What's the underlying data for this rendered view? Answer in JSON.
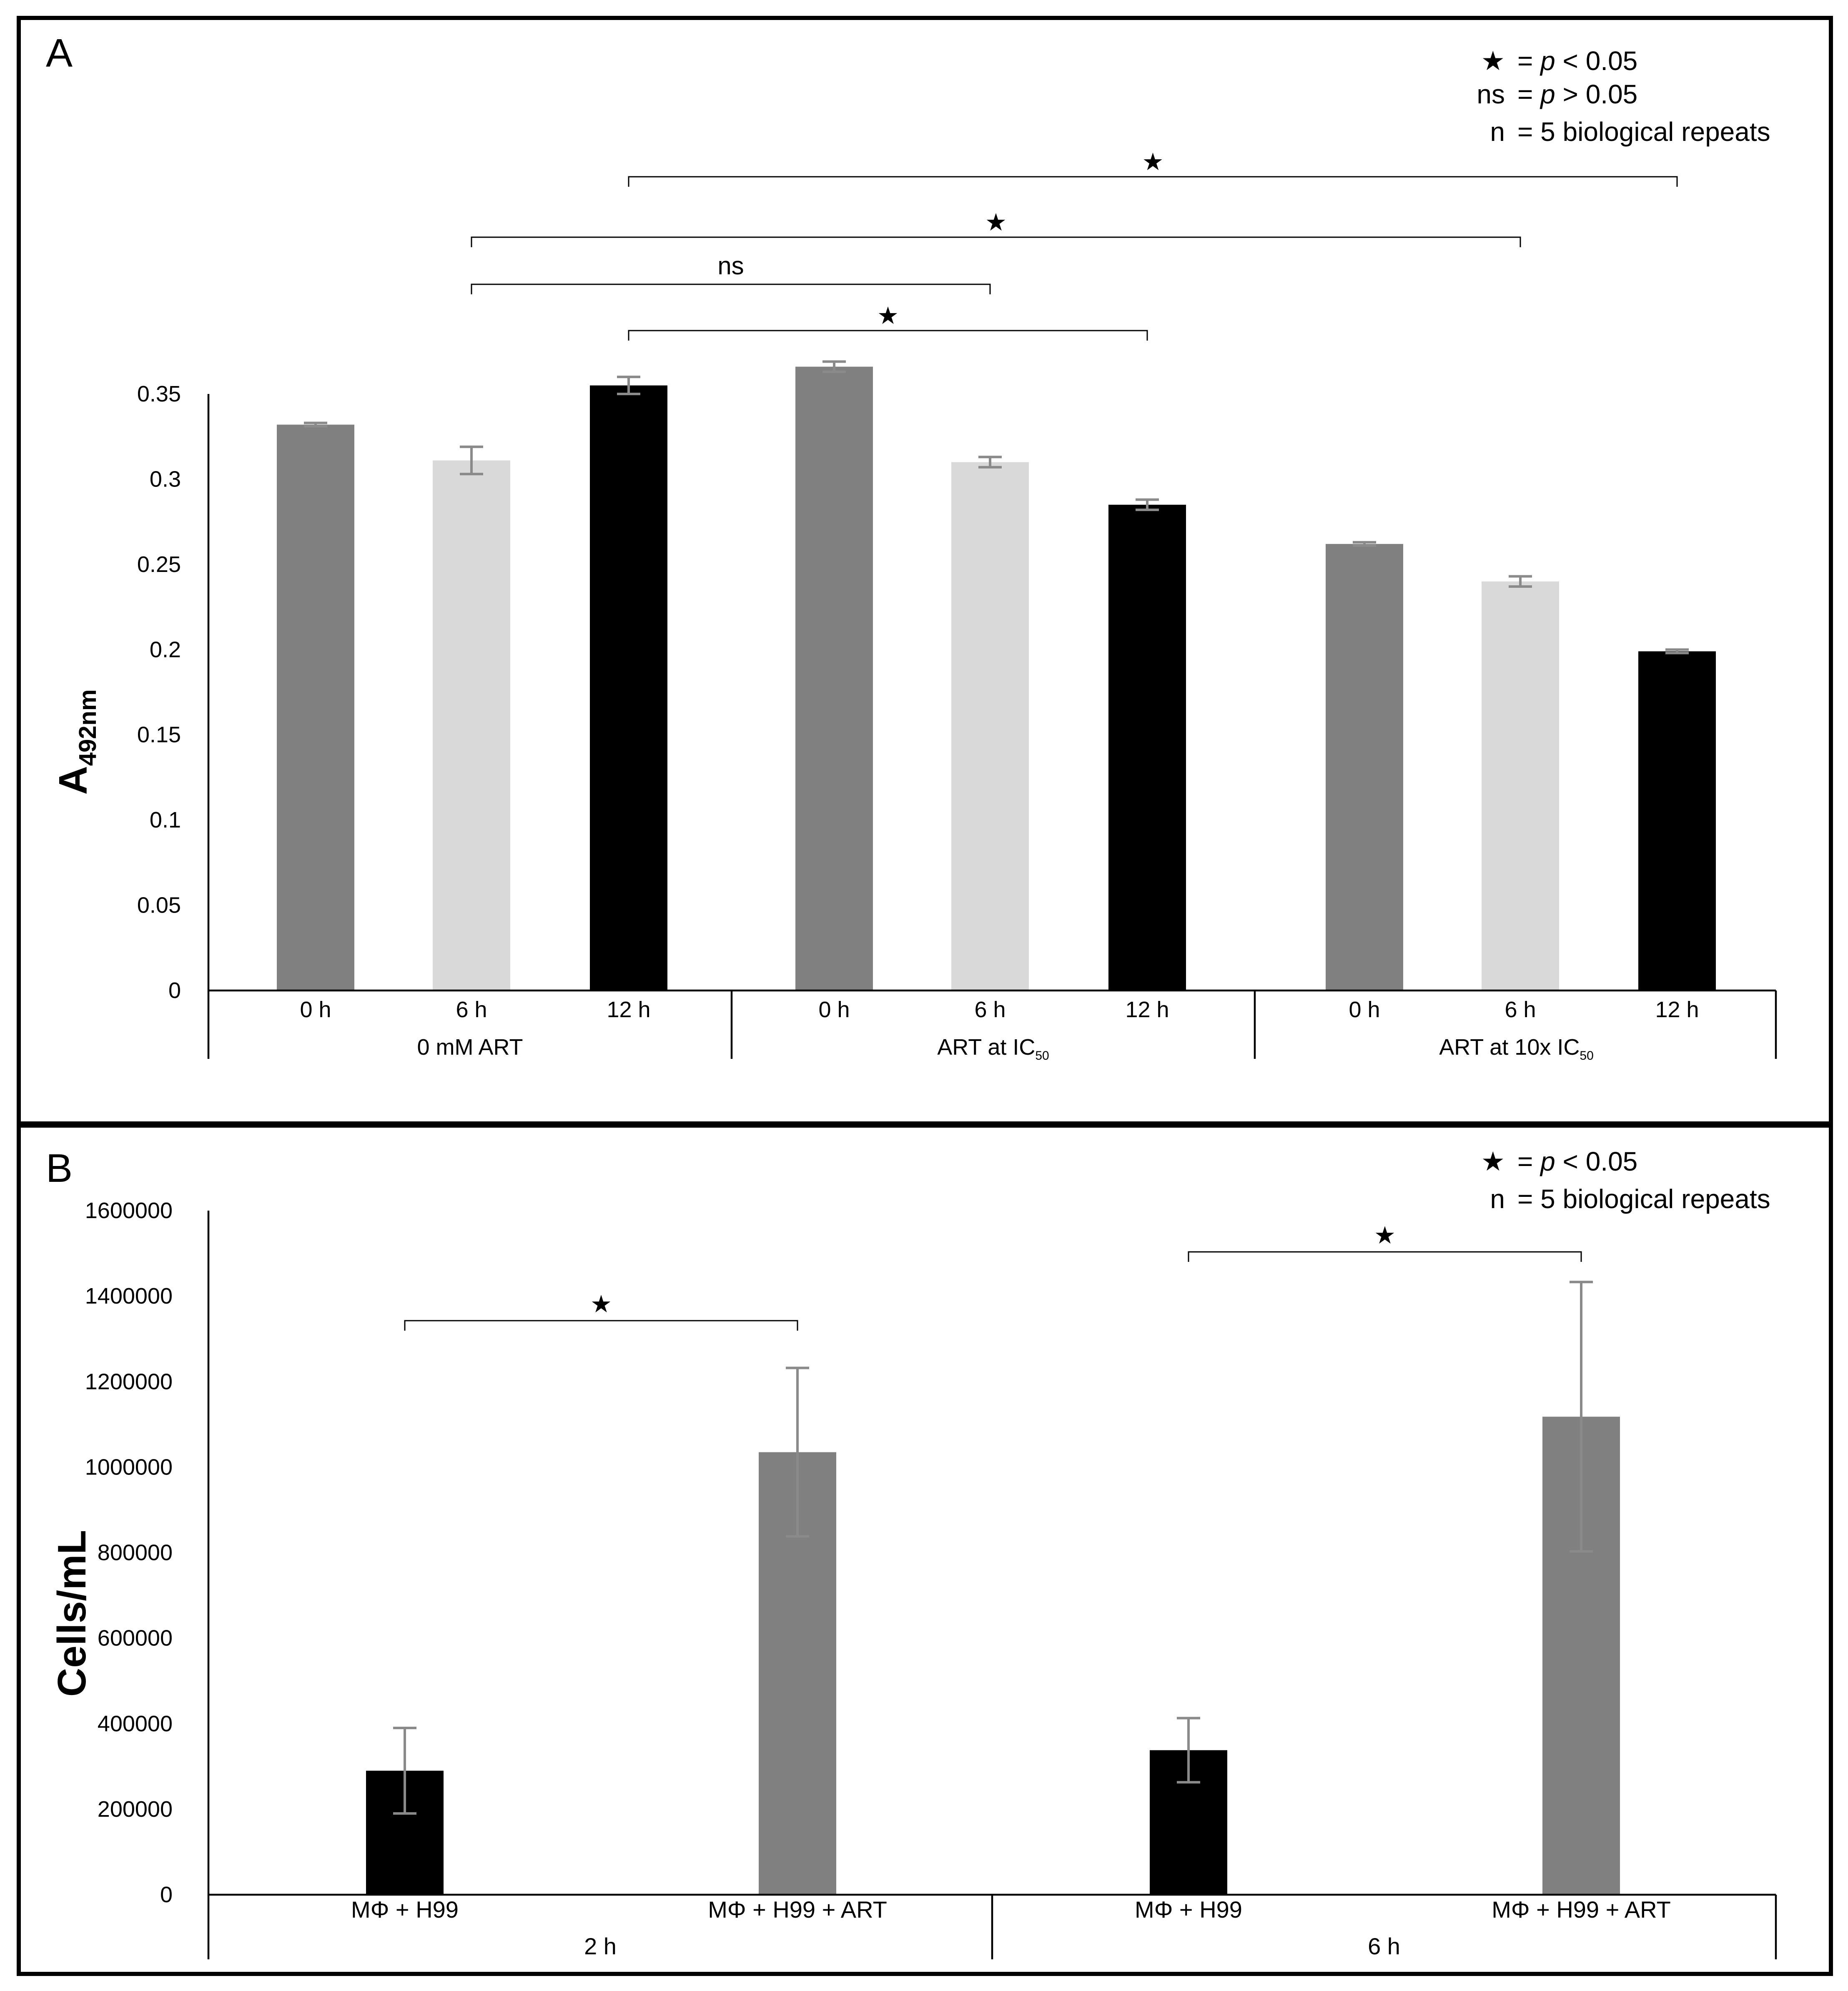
{
  "chart_data": [
    {
      "panel": "A",
      "type": "bar",
      "panel_label": "A",
      "ylabel": "A",
      "ylabel_sub": "492nm",
      "ylim": [
        0,
        0.35
      ],
      "yticks": [
        {
          "value": 0,
          "label": "0"
        },
        {
          "value": 0.05,
          "label": "0.05"
        },
        {
          "value": 0.1,
          "label": "0.1"
        },
        {
          "value": 0.15,
          "label": "0.15"
        },
        {
          "value": 0.2,
          "label": "0.2"
        },
        {
          "value": 0.25,
          "label": "0.25"
        },
        {
          "value": 0.3,
          "label": "0.3"
        },
        {
          "value": 0.35,
          "label": "0.35"
        }
      ],
      "groups": [
        {
          "label": "0 mM ART",
          "label_sub": ""
        },
        {
          "label": "ART at IC",
          "label_sub": "50"
        },
        {
          "label": "ART at 10x IC",
          "label_sub": "50"
        }
      ],
      "bars": [
        {
          "group": 0,
          "category": "0 h",
          "value": 0.332,
          "error": 0.001,
          "color": "#808080"
        },
        {
          "group": 0,
          "category": "6 h",
          "value": 0.311,
          "error": 0.008,
          "color": "#d9d9d9"
        },
        {
          "group": 0,
          "category": "12 h",
          "value": 0.355,
          "error": 0.005,
          "color": "#000000"
        },
        {
          "group": 1,
          "category": "0 h",
          "value": 0.366,
          "error": 0.003,
          "color": "#808080"
        },
        {
          "group": 1,
          "category": "6 h",
          "value": 0.31,
          "error": 0.003,
          "color": "#d9d9d9"
        },
        {
          "group": 1,
          "category": "12 h",
          "value": 0.285,
          "error": 0.003,
          "color": "#000000"
        },
        {
          "group": 2,
          "category": "0 h",
          "value": 0.262,
          "error": 0.001,
          "color": "#808080"
        },
        {
          "group": 2,
          "category": "6 h",
          "value": 0.24,
          "error": 0.003,
          "color": "#d9d9d9"
        },
        {
          "group": 2,
          "category": "12 h",
          "value": 0.199,
          "error": 0.001,
          "color": "#000000"
        }
      ],
      "significance": [
        {
          "from_bar": 2,
          "to_bar": 8,
          "label": "★"
        },
        {
          "from_bar": 1,
          "to_bar": 7,
          "label": "★"
        },
        {
          "from_bar": 1,
          "to_bar": 4,
          "label": "ns"
        },
        {
          "from_bar": 2,
          "to_bar": 5,
          "label": "★"
        }
      ],
      "legend": [
        {
          "symbol": "★",
          "text_pre": "= ",
          "text_ital": "p",
          "text_post": " < 0.05"
        },
        {
          "symbol": "ns",
          "text_pre": "= ",
          "text_ital": "p",
          "text_post": " > 0.05"
        },
        {
          "symbol": "n",
          "text_pre": "= 5 biological repeats",
          "text_ital": "",
          "text_post": ""
        }
      ]
    },
    {
      "panel": "B",
      "type": "bar",
      "panel_label": "B",
      "ylabel": "Cells/mL",
      "ylim": [
        0,
        1600000
      ],
      "yticks": [
        {
          "value": 0,
          "label": "0"
        },
        {
          "value": 200000,
          "label": "200000"
        },
        {
          "value": 400000,
          "label": "400000"
        },
        {
          "value": 600000,
          "label": "600000"
        },
        {
          "value": 800000,
          "label": "800000"
        },
        {
          "value": 1000000,
          "label": "1000000"
        },
        {
          "value": 1200000,
          "label": "1200000"
        },
        {
          "value": 1400000,
          "label": "1400000"
        },
        {
          "value": 1600000,
          "label": "1600000"
        }
      ],
      "groups": [
        {
          "label": "2 h"
        },
        {
          "label": "6 h"
        }
      ],
      "bars": [
        {
          "group": 0,
          "category": "MΦ + H99",
          "value": 290000,
          "error": 100000,
          "color": "#000000"
        },
        {
          "group": 0,
          "category": "MΦ + H99 + ART",
          "value": 1035000,
          "error": 197000,
          "color": "#808080"
        },
        {
          "group": 1,
          "category": "MΦ + H99",
          "value": 338000,
          "error": 75000,
          "color": "#000000"
        },
        {
          "group": 1,
          "category": "MΦ + H99 + ART",
          "value": 1118000,
          "error": 315000,
          "color": "#808080"
        }
      ],
      "significance": [
        {
          "from_bar": 0,
          "to_bar": 1,
          "label": "★"
        },
        {
          "from_bar": 2,
          "to_bar": 3,
          "label": "★"
        }
      ],
      "legend": [
        {
          "symbol": "★",
          "text_pre": "= ",
          "text_ital": "p",
          "text_post": " < 0.05"
        },
        {
          "symbol": "n",
          "text_pre": "= 5 biological repeats",
          "text_ital": "",
          "text_post": ""
        }
      ]
    }
  ]
}
